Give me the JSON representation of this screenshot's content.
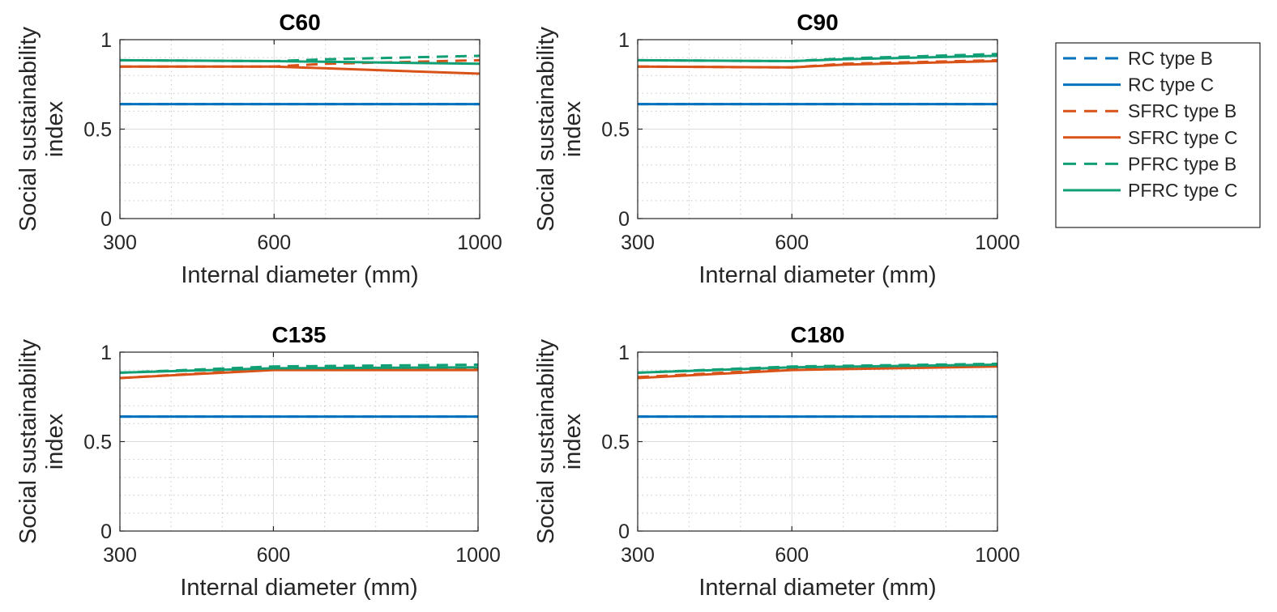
{
  "colors": {
    "rc": "#0072BD",
    "sfrc": "#D95319",
    "pfrc": "#119F75",
    "axis": "#262626",
    "grid": "#DCDCDC"
  },
  "chart_data": [
    {
      "type": "line",
      "title": "C60",
      "xlabel": "Internal diameter (mm)",
      "ylabel_line1": "Social sustainability",
      "ylabel_line2": "index",
      "xlim": [
        300,
        1000
      ],
      "ylim": [
        0,
        1
      ],
      "xticks": [
        "300",
        "600",
        "1000"
      ],
      "yticks": [
        "0",
        "0.5",
        "1"
      ],
      "series": [
        {
          "name": "RC type B",
          "x": [
            300,
            600,
            1000
          ],
          "values": [
            0.64,
            0.64,
            0.64
          ]
        },
        {
          "name": "RC type C",
          "x": [
            300,
            600,
            1000
          ],
          "values": [
            0.64,
            0.64,
            0.64
          ]
        },
        {
          "name": "SFRC type B",
          "x": [
            300,
            600,
            700,
            1000
          ],
          "values": [
            0.85,
            0.85,
            0.865,
            0.885
          ]
        },
        {
          "name": "SFRC type C",
          "x": [
            300,
            600,
            1000
          ],
          "values": [
            0.85,
            0.85,
            0.81
          ]
        },
        {
          "name": "PFRC type B",
          "x": [
            300,
            600,
            700,
            1000
          ],
          "values": [
            0.885,
            0.88,
            0.89,
            0.91
          ]
        },
        {
          "name": "PFRC type C",
          "x": [
            300,
            600,
            1000
          ],
          "values": [
            0.885,
            0.88,
            0.865
          ]
        }
      ]
    },
    {
      "type": "line",
      "title": "C90",
      "xlabel": "Internal diameter (mm)",
      "ylabel_line1": "Social sustainability",
      "ylabel_line2": "index",
      "xlim": [
        300,
        1000
      ],
      "ylim": [
        0,
        1
      ],
      "xticks": [
        "300",
        "600",
        "1000"
      ],
      "yticks": [
        "0",
        "0.5",
        "1"
      ],
      "series": [
        {
          "name": "RC type B",
          "x": [
            300,
            600,
            1000
          ],
          "values": [
            0.64,
            0.64,
            0.64
          ]
        },
        {
          "name": "RC type C",
          "x": [
            300,
            600,
            1000
          ],
          "values": [
            0.64,
            0.64,
            0.64
          ]
        },
        {
          "name": "SFRC type B",
          "x": [
            300,
            600,
            700,
            1000
          ],
          "values": [
            0.85,
            0.845,
            0.865,
            0.885
          ]
        },
        {
          "name": "SFRC type C",
          "x": [
            300,
            600,
            700,
            1000
          ],
          "values": [
            0.85,
            0.845,
            0.86,
            0.88
          ]
        },
        {
          "name": "PFRC type B",
          "x": [
            300,
            600,
            700,
            1000
          ],
          "values": [
            0.885,
            0.88,
            0.895,
            0.92
          ]
        },
        {
          "name": "PFRC type C",
          "x": [
            300,
            600,
            700,
            1000
          ],
          "values": [
            0.885,
            0.88,
            0.89,
            0.91
          ]
        }
      ]
    },
    {
      "type": "line",
      "title": "C135",
      "xlabel": "Internal diameter (mm)",
      "ylabel_line1": "Social sustainability",
      "ylabel_line2": "index",
      "xlim": [
        300,
        1000
      ],
      "ylim": [
        0,
        1
      ],
      "xticks": [
        "300",
        "600",
        "1000"
      ],
      "yticks": [
        "0",
        "0.5",
        "1"
      ],
      "series": [
        {
          "name": "RC type B",
          "x": [
            300,
            600,
            1000
          ],
          "values": [
            0.64,
            0.64,
            0.64
          ]
        },
        {
          "name": "RC type C",
          "x": [
            300,
            600,
            1000
          ],
          "values": [
            0.64,
            0.64,
            0.64
          ]
        },
        {
          "name": "SFRC type B",
          "x": [
            300,
            600,
            1000
          ],
          "values": [
            0.855,
            0.905,
            0.91
          ]
        },
        {
          "name": "SFRC type C",
          "x": [
            300,
            600,
            1000
          ],
          "values": [
            0.855,
            0.9,
            0.9
          ]
        },
        {
          "name": "PFRC type B",
          "x": [
            300,
            600,
            1000
          ],
          "values": [
            0.885,
            0.92,
            0.93
          ]
        },
        {
          "name": "PFRC type C",
          "x": [
            300,
            600,
            1000
          ],
          "values": [
            0.885,
            0.91,
            0.915
          ]
        }
      ]
    },
    {
      "type": "line",
      "title": "C180",
      "xlabel": "Internal diameter (mm)",
      "ylabel_line1": "Social sustainability",
      "ylabel_line2": "index",
      "xlim": [
        300,
        1000
      ],
      "ylim": [
        0,
        1
      ],
      "xticks": [
        "300",
        "600",
        "1000"
      ],
      "yticks": [
        "0",
        "0.5",
        "1"
      ],
      "series": [
        {
          "name": "RC type B",
          "x": [
            300,
            600,
            1000
          ],
          "values": [
            0.64,
            0.64,
            0.64
          ]
        },
        {
          "name": "RC type C",
          "x": [
            300,
            600,
            1000
          ],
          "values": [
            0.64,
            0.64,
            0.64
          ]
        },
        {
          "name": "SFRC type B",
          "x": [
            300,
            600,
            1000
          ],
          "values": [
            0.86,
            0.905,
            0.925
          ]
        },
        {
          "name": "SFRC type C",
          "x": [
            300,
            600,
            1000
          ],
          "values": [
            0.855,
            0.9,
            0.92
          ]
        },
        {
          "name": "PFRC type B",
          "x": [
            300,
            600,
            1000
          ],
          "values": [
            0.885,
            0.92,
            0.935
          ]
        },
        {
          "name": "PFRC type C",
          "x": [
            300,
            600,
            1000
          ],
          "values": [
            0.885,
            0.915,
            0.93
          ]
        }
      ]
    }
  ],
  "legend": {
    "items": [
      {
        "label": "RC type B",
        "color_key": "rc",
        "dashed": true
      },
      {
        "label": "RC type C",
        "color_key": "rc",
        "dashed": false
      },
      {
        "label": "SFRC type B",
        "color_key": "sfrc",
        "dashed": true
      },
      {
        "label": "SFRC type C",
        "color_key": "sfrc",
        "dashed": false
      },
      {
        "label": "PFRC type B",
        "color_key": "pfrc",
        "dashed": true
      },
      {
        "label": "PFRC type C",
        "color_key": "pfrc",
        "dashed": false
      }
    ]
  }
}
